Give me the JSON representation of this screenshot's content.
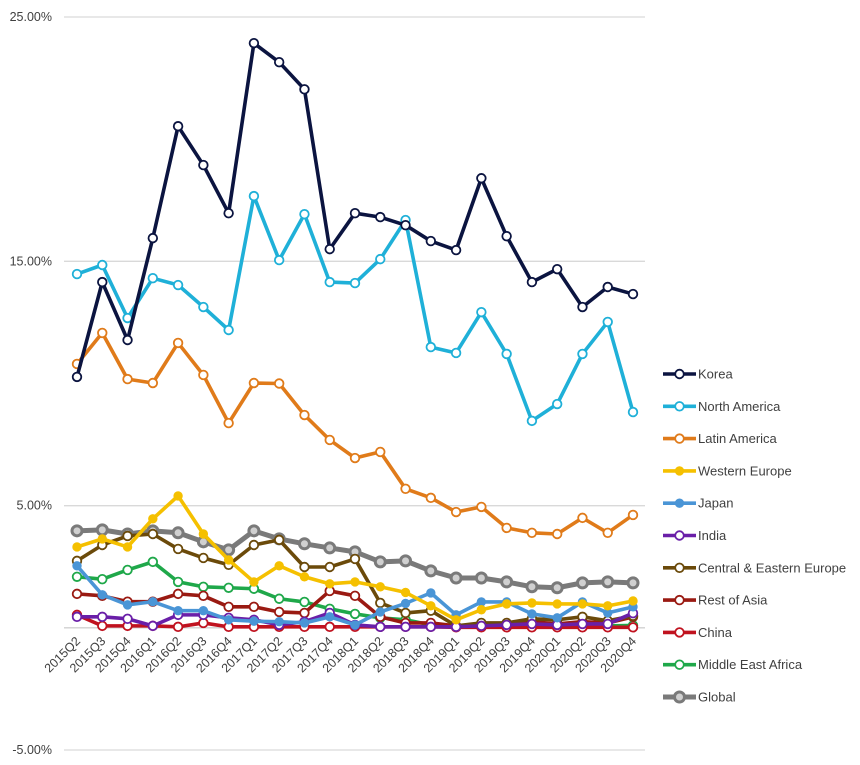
{
  "chart_data": {
    "type": "line",
    "title": "",
    "xlabel": "",
    "ylabel": "",
    "ylim": [
      -0.05,
      0.25
    ],
    "y_tick_values": [
      0.25,
      0.15,
      0.05,
      -0.05
    ],
    "y_tick_labels": [
      "25.00%",
      "15.00%",
      "5.00%",
      "-5.00%"
    ],
    "grid": true,
    "legend_position": "right",
    "categories": [
      "2015Q2",
      "2015Q3",
      "2015Q4",
      "2016Q1",
      "2016Q2",
      "2016Q3",
      "2016Q4",
      "2017Q1",
      "2017Q2",
      "2017Q3",
      "2017Q4",
      "2018Q1",
      "2018Q2",
      "2018Q3",
      "2018Q4",
      "2019Q1",
      "2019Q2",
      "2019Q3",
      "2019Q4",
      "2020Q1",
      "2020Q2",
      "2020Q3",
      "2020Q4"
    ],
    "series": [
      {
        "name": "Korea",
        "color": "#0b1440",
        "marker": "hollow",
        "values": [
          0.1027,
          0.1415,
          0.1178,
          0.1595,
          0.2053,
          0.1894,
          0.1697,
          0.2393,
          0.2315,
          0.2204,
          0.155,
          0.1697,
          0.1681,
          0.1648,
          0.1583,
          0.1546,
          0.184,
          0.1603,
          0.1415,
          0.1468,
          0.1313,
          0.1395,
          0.1366
        ]
      },
      {
        "name": "North America",
        "color": "#1fb0d8",
        "marker": "hollow",
        "values": [
          0.1448,
          0.1485,
          0.1268,
          0.1431,
          0.1403,
          0.1313,
          0.1219,
          0.1767,
          0.1505,
          0.1693,
          0.1415,
          0.1411,
          0.1509,
          0.1669,
          0.1149,
          0.1125,
          0.1292,
          0.1121,
          0.0847,
          0.0916,
          0.1121,
          0.1252,
          0.0883
        ]
      },
      {
        "name": "Latin America",
        "color": "#e07b1a",
        "marker": "hollow",
        "values": [
          0.108,
          0.1207,
          0.1018,
          0.1002,
          0.1166,
          0.1035,
          0.0838,
          0.1002,
          0.1,
          0.0871,
          0.0769,
          0.0695,
          0.072,
          0.0569,
          0.0532,
          0.0474,
          0.0495,
          0.0409,
          0.0389,
          0.0384,
          0.045,
          0.0389,
          0.0462
        ]
      },
      {
        "name": "Western Europe",
        "color": "#f5c000",
        "marker": "filled",
        "values": [
          0.0331,
          0.0364,
          0.0331,
          0.0446,
          0.054,
          0.0384,
          0.0278,
          0.0188,
          0.0254,
          0.0209,
          0.018,
          0.0188,
          0.0168,
          0.0145,
          0.009,
          0.0033,
          0.0074,
          0.0098,
          0.0102,
          0.0098,
          0.0098,
          0.009,
          0.011
        ]
      },
      {
        "name": "Japan",
        "color": "#4a95d6",
        "marker": "filled",
        "values": [
          0.0254,
          0.0135,
          0.0094,
          0.0107,
          0.007,
          0.007,
          0.0033,
          0.0027,
          0.0025,
          0.002,
          0.0045,
          0.0012,
          0.0065,
          0.01,
          0.0143,
          0.0053,
          0.0106,
          0.0106,
          0.0057,
          0.0041,
          0.0106,
          0.0061,
          0.0086
        ]
      },
      {
        "name": "India",
        "color": "#6a1fa8",
        "marker": "hollow",
        "values": [
          0.0045,
          0.0045,
          0.0037,
          0.0008,
          0.0053,
          0.0053,
          0.0041,
          0.0033,
          0.0012,
          0.0025,
          0.0061,
          0.0012,
          0.0004,
          0.0004,
          0.0004,
          0.0004,
          0.0008,
          0.0012,
          0.0016,
          0.0012,
          0.0016,
          0.0016,
          0.006
        ]
      },
      {
        "name": "Central & Eastern Europe",
        "color": "#6b4a0a",
        "marker": "hollow",
        "values": [
          0.0274,
          0.0339,
          0.0376,
          0.0384,
          0.0323,
          0.0286,
          0.0258,
          0.0339,
          0.036,
          0.0249,
          0.0249,
          0.0282,
          0.0102,
          0.0061,
          0.007,
          0.0008,
          0.002,
          0.002,
          0.0037,
          0.0033,
          0.0045,
          0.0029,
          0.0049
        ]
      },
      {
        "name": "Rest of Asia",
        "color": "#9a1a12",
        "marker": "hollow",
        "values": [
          0.0139,
          0.0131,
          0.0107,
          0.0107,
          0.0139,
          0.0131,
          0.0086,
          0.0086,
          0.0065,
          0.0061,
          0.0151,
          0.0131,
          0.0045,
          0.002,
          0.002,
          0.0008,
          0.0012,
          0.0016,
          0.0025,
          0.0016,
          0.0025,
          0.002,
          0.0045
        ]
      },
      {
        "name": "China",
        "color": "#c0121f",
        "marker": "hollow",
        "values": [
          0.0053,
          0.0008,
          0.0008,
          0.0008,
          0.0004,
          0.002,
          0.0004,
          0.0004,
          0.0004,
          0.0004,
          0.0004,
          0.0004,
          0.0004,
          0.0004,
          0.0004,
          0.0002,
          0.0002,
          0.0002,
          0.0002,
          0.0002,
          0.0002,
          0.0002,
          0.0002
        ]
      },
      {
        "name": "Middle East Africa",
        "color": "#1fa84a",
        "marker": "hollow",
        "values": [
          0.0209,
          0.0199,
          0.0237,
          0.027,
          0.0188,
          0.0168,
          0.0164,
          0.016,
          0.0119,
          0.0106,
          0.0078,
          0.0057,
          0.0041,
          0.0033,
          0.0012,
          0.0008,
          0.0008,
          0.0008,
          0.0008,
          0.0008,
          0.0008,
          0.0008,
          0.001
        ]
      },
      {
        "name": "Global",
        "color": "#7a7a7a",
        "marker": "global",
        "values": [
          0.0397,
          0.0401,
          0.0384,
          0.0397,
          0.0389,
          0.0352,
          0.0319,
          0.0397,
          0.0364,
          0.0344,
          0.0327,
          0.0311,
          0.027,
          0.0274,
          0.0233,
          0.0204,
          0.0204,
          0.0188,
          0.0168,
          0.0164,
          0.0184,
          0.0188,
          0.0184
        ]
      }
    ]
  }
}
